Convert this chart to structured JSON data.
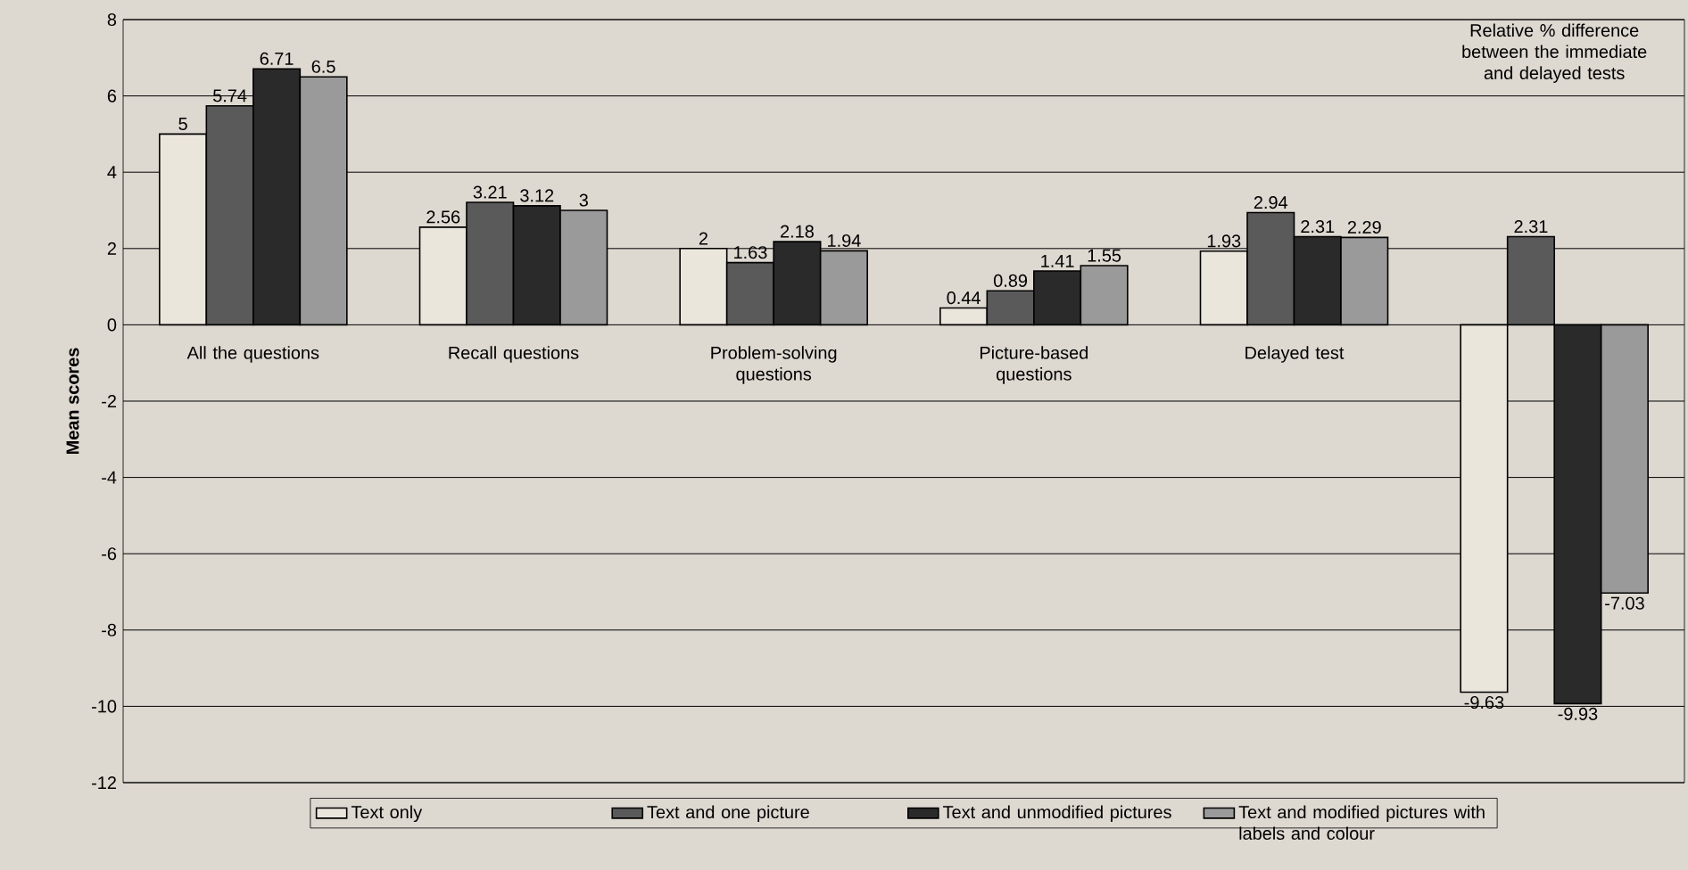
{
  "chart_data": {
    "type": "bar",
    "categories": [
      "All the questions",
      "Recall questions",
      "Problem-solving questions",
      "Picture-based questions",
      "Delayed test",
      "Relative % difference between the immediate and delayed tests"
    ],
    "series": [
      {
        "name": "Text only",
        "color": "#ebe6dc",
        "values": [
          5,
          2.56,
          2,
          0.44,
          1.93,
          -9.63
        ]
      },
      {
        "name": "Text and one picture",
        "color": "#5a5a5a",
        "values": [
          5.74,
          3.21,
          1.63,
          0.89,
          2.94,
          2.31
        ]
      },
      {
        "name": "Text and unmodified pictures",
        "color": "#2a2a2a",
        "values": [
          6.71,
          3.12,
          2.18,
          1.41,
          2.31,
          -9.93
        ]
      },
      {
        "name": "Text and modified pictures with labels and colour",
        "color": "#9a9a9a",
        "values": [
          6.5,
          3,
          1.94,
          1.55,
          2.29,
          -7.03
        ]
      }
    ],
    "ylabel": "Mean scores",
    "ylim": [
      -12,
      8
    ],
    "yticks": [
      -12,
      -10,
      -8,
      -6,
      -4,
      -2,
      0,
      2,
      4,
      6,
      8
    ],
    "grid": true,
    "legend": "bottom",
    "data_labels": true
  }
}
